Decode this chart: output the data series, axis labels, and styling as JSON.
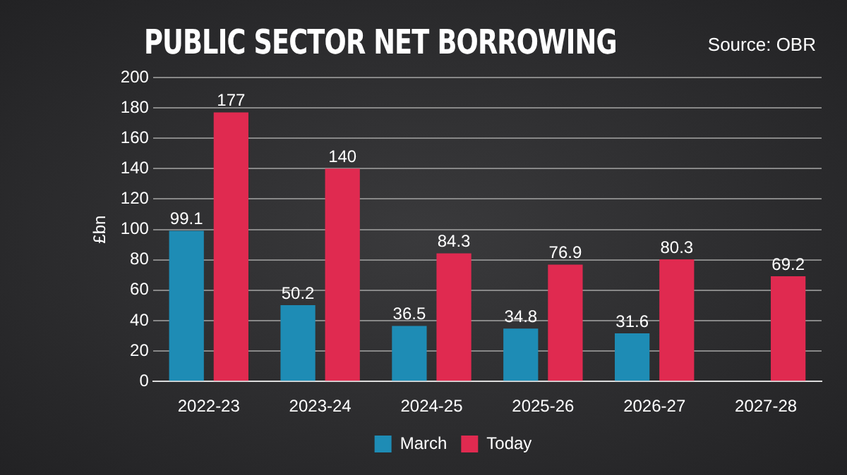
{
  "chart_data": {
    "type": "bar",
    "title": "PUBLIC SECTOR NET BORROWING",
    "annotations": [
      "Source: OBR"
    ],
    "ylabel": "£bn",
    "categories": [
      "2022-23",
      "2023-24",
      "2024-25",
      "2025-26",
      "2026-27",
      "2027-28"
    ],
    "series": [
      {
        "name": "March",
        "color": "#1e8cb5",
        "values": [
          99.1,
          50.2,
          36.5,
          34.8,
          31.6,
          null
        ]
      },
      {
        "name": "Today",
        "color": "#e02a50",
        "values": [
          177,
          140,
          84.3,
          76.9,
          80.3,
          69.2
        ]
      }
    ],
    "ylim": [
      0,
      200
    ],
    "yticks": [
      0,
      20,
      40,
      60,
      80,
      100,
      120,
      140,
      160,
      180,
      200
    ],
    "grid": "y",
    "legend": "bottom",
    "data_labels": true
  }
}
